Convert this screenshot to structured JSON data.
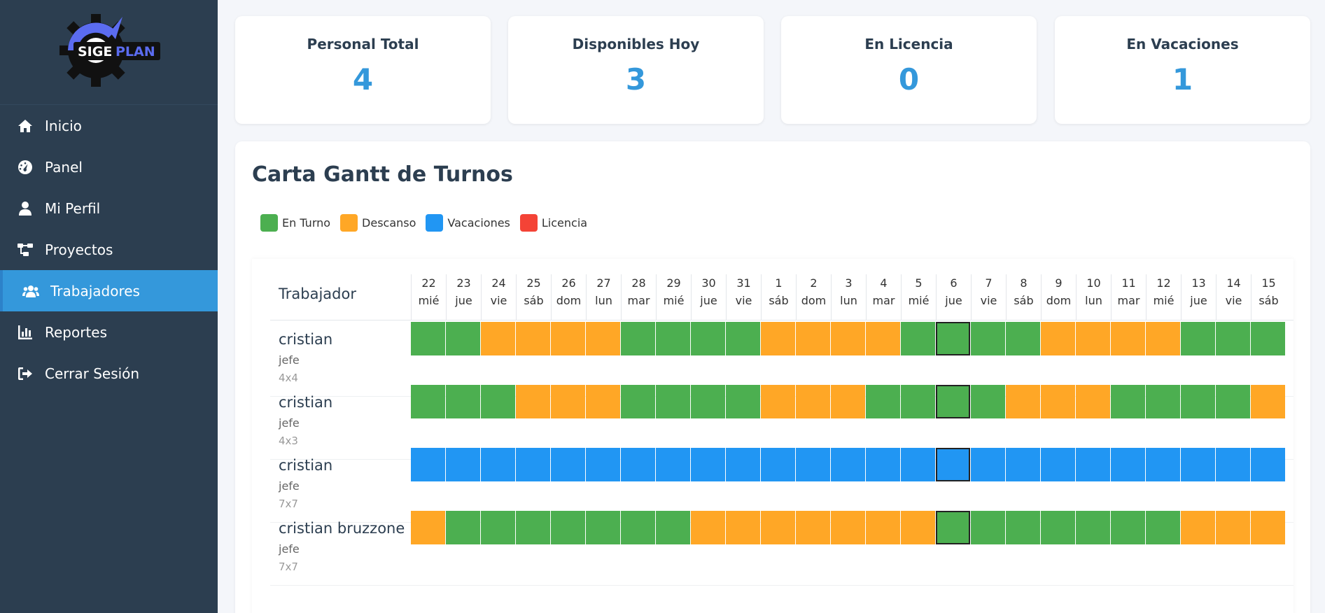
{
  "brand": {
    "logo_text_a": "SIGE",
    "logo_text_b": "PLAN"
  },
  "nav": [
    {
      "label": "Inicio",
      "icon": "home-icon"
    },
    {
      "label": "Panel",
      "icon": "dashboard-icon"
    },
    {
      "label": "Mi Perfil",
      "icon": "user-icon"
    },
    {
      "label": "Proyectos",
      "icon": "project-icon"
    },
    {
      "label": "Trabajadores",
      "icon": "users-icon",
      "active": true
    },
    {
      "label": "Reportes",
      "icon": "chart-icon"
    },
    {
      "label": "Cerrar Sesión",
      "icon": "logout-icon"
    }
  ],
  "stats": [
    {
      "label": "Personal Total",
      "value": "4"
    },
    {
      "label": "Disponibles Hoy",
      "value": "3"
    },
    {
      "label": "En Licencia",
      "value": "0"
    },
    {
      "label": "En Vacaciones",
      "value": "1"
    }
  ],
  "gantt": {
    "title": "Carta Gantt de Turnos",
    "legend": [
      {
        "label": "En Turno",
        "color": "#4caf50",
        "code": "T"
      },
      {
        "label": "Descanso",
        "color": "#ffa726",
        "code": "D"
      },
      {
        "label": "Vacaciones",
        "color": "#2196f3",
        "code": "V"
      },
      {
        "label": "Licencia",
        "color": "#f44336",
        "code": "L"
      }
    ],
    "worker_header": "Trabajador",
    "days": [
      {
        "num": "22",
        "dow": "mié"
      },
      {
        "num": "23",
        "dow": "jue"
      },
      {
        "num": "24",
        "dow": "vie"
      },
      {
        "num": "25",
        "dow": "sáb"
      },
      {
        "num": "26",
        "dow": "dom"
      },
      {
        "num": "27",
        "dow": "lun"
      },
      {
        "num": "28",
        "dow": "mar"
      },
      {
        "num": "29",
        "dow": "mié"
      },
      {
        "num": "30",
        "dow": "jue"
      },
      {
        "num": "31",
        "dow": "vie"
      },
      {
        "num": "1",
        "dow": "sáb"
      },
      {
        "num": "2",
        "dow": "dom"
      },
      {
        "num": "3",
        "dow": "lun"
      },
      {
        "num": "4",
        "dow": "mar"
      },
      {
        "num": "5",
        "dow": "mié"
      },
      {
        "num": "6",
        "dow": "jue"
      },
      {
        "num": "7",
        "dow": "vie"
      },
      {
        "num": "8",
        "dow": "sáb"
      },
      {
        "num": "9",
        "dow": "dom"
      },
      {
        "num": "10",
        "dow": "lun"
      },
      {
        "num": "11",
        "dow": "mar"
      },
      {
        "num": "12",
        "dow": "mié"
      },
      {
        "num": "13",
        "dow": "jue"
      },
      {
        "num": "14",
        "dow": "vie"
      },
      {
        "num": "15",
        "dow": "sáb"
      }
    ],
    "today_index": 15,
    "workers": [
      {
        "name": "cristian",
        "role": "jefe",
        "shift": "4x4",
        "cells": [
          "T",
          "T",
          "D",
          "D",
          "D",
          "D",
          "T",
          "T",
          "T",
          "T",
          "D",
          "D",
          "D",
          "D",
          "T",
          "T",
          "T",
          "T",
          "D",
          "D",
          "D",
          "D",
          "T",
          "T",
          "T"
        ]
      },
      {
        "name": "cristian",
        "role": "jefe",
        "shift": "4x3",
        "cells": [
          "T",
          "T",
          "T",
          "D",
          "D",
          "D",
          "T",
          "T",
          "T",
          "T",
          "D",
          "D",
          "D",
          "T",
          "T",
          "T",
          "T",
          "D",
          "D",
          "D",
          "T",
          "T",
          "T",
          "T",
          "D"
        ]
      },
      {
        "name": "cristian",
        "role": "jefe",
        "shift": "7x7",
        "cells": [
          "V",
          "V",
          "V",
          "V",
          "V",
          "V",
          "V",
          "V",
          "V",
          "V",
          "V",
          "V",
          "V",
          "V",
          "V",
          "V",
          "V",
          "V",
          "V",
          "V",
          "V",
          "V",
          "V",
          "V",
          "V"
        ]
      },
      {
        "name": "cristian bruzzone",
        "role": "jefe",
        "shift": "7x7",
        "cells": [
          "D",
          "T",
          "T",
          "T",
          "T",
          "T",
          "T",
          "T",
          "D",
          "D",
          "D",
          "D",
          "D",
          "D",
          "D",
          "T",
          "T",
          "T",
          "T",
          "T",
          "T",
          "T",
          "D",
          "D",
          "D"
        ]
      }
    ]
  }
}
